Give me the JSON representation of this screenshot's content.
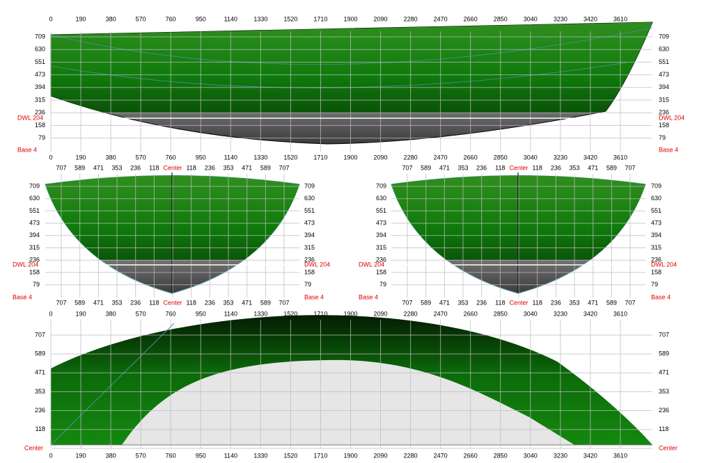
{
  "profile_view": {
    "top_ticks": [
      0,
      190,
      380,
      570,
      760,
      950,
      1140,
      1330,
      1520,
      1710,
      1900,
      2090,
      2280,
      2470,
      2660,
      2850,
      3040,
      3230,
      3420,
      3610
    ],
    "bottom_ticks": [
      0,
      190,
      380,
      570,
      760,
      950,
      1140,
      1330,
      1520,
      1710,
      1900,
      2090,
      2280,
      2470,
      2660,
      2850,
      3040,
      3230,
      3420,
      3610
    ],
    "left_ticks": [
      709,
      630,
      551,
      473,
      394,
      315,
      236,
      158,
      79
    ],
    "right_ticks": [
      709,
      630,
      551,
      473,
      394,
      315,
      236,
      158,
      79
    ],
    "left_waterline": "DWL 204",
    "right_waterline": "DWL 204",
    "left_base": "Base 4",
    "right_base": "Base 4"
  },
  "body_view_aft": {
    "top_ticks": [
      707,
      589,
      471,
      353,
      236,
      118,
      "Center",
      118,
      236,
      353,
      471,
      589,
      707
    ],
    "bottom_ticks": [
      707,
      589,
      471,
      353,
      236,
      118,
      "Center",
      118,
      236,
      353,
      471,
      589,
      707
    ],
    "left_ticks": [
      709,
      630,
      551,
      473,
      394,
      315,
      236,
      158,
      79
    ],
    "right_ticks": [
      709,
      630,
      551,
      473,
      394,
      315,
      236,
      158,
      79
    ],
    "left_waterline": "DWL 204",
    "right_waterline": "DWL 204",
    "left_base": "Base 4",
    "right_base": "Base 4"
  },
  "body_view_fwd": {
    "top_ticks": [
      707,
      589,
      471,
      353,
      236,
      118,
      "Center",
      118,
      236,
      353,
      471,
      589,
      707
    ],
    "bottom_ticks": [
      707,
      589,
      471,
      353,
      236,
      118,
      "Center",
      118,
      236,
      353,
      471,
      589,
      707
    ],
    "left_ticks": [
      709,
      630,
      551,
      473,
      394,
      315,
      236,
      158,
      79
    ],
    "right_ticks": [
      709,
      630,
      551,
      473,
      394,
      315,
      236,
      158,
      79
    ],
    "left_waterline": "DWL 204",
    "right_waterline": "DWL 204",
    "left_base": "Base 4",
    "right_base": "Base 4"
  },
  "plan_view": {
    "top_ticks": [
      0,
      190,
      380,
      570,
      760,
      950,
      1140,
      1330,
      1520,
      1710,
      1900,
      2090,
      2280,
      2470,
      2660,
      2850,
      3040,
      3230,
      3420,
      3610
    ],
    "bottom_ticks": [
      0,
      190,
      380,
      570,
      760,
      950,
      1140,
      1330,
      1520,
      1710,
      1900,
      2090,
      2280,
      2470,
      2660,
      2850,
      3040,
      3230,
      3420,
      3610
    ],
    "left_ticks": [
      707,
      589,
      471,
      353,
      236,
      118,
      "Center"
    ],
    "right_ticks": [
      707,
      589,
      471,
      353,
      236,
      118,
      "Center"
    ]
  }
}
